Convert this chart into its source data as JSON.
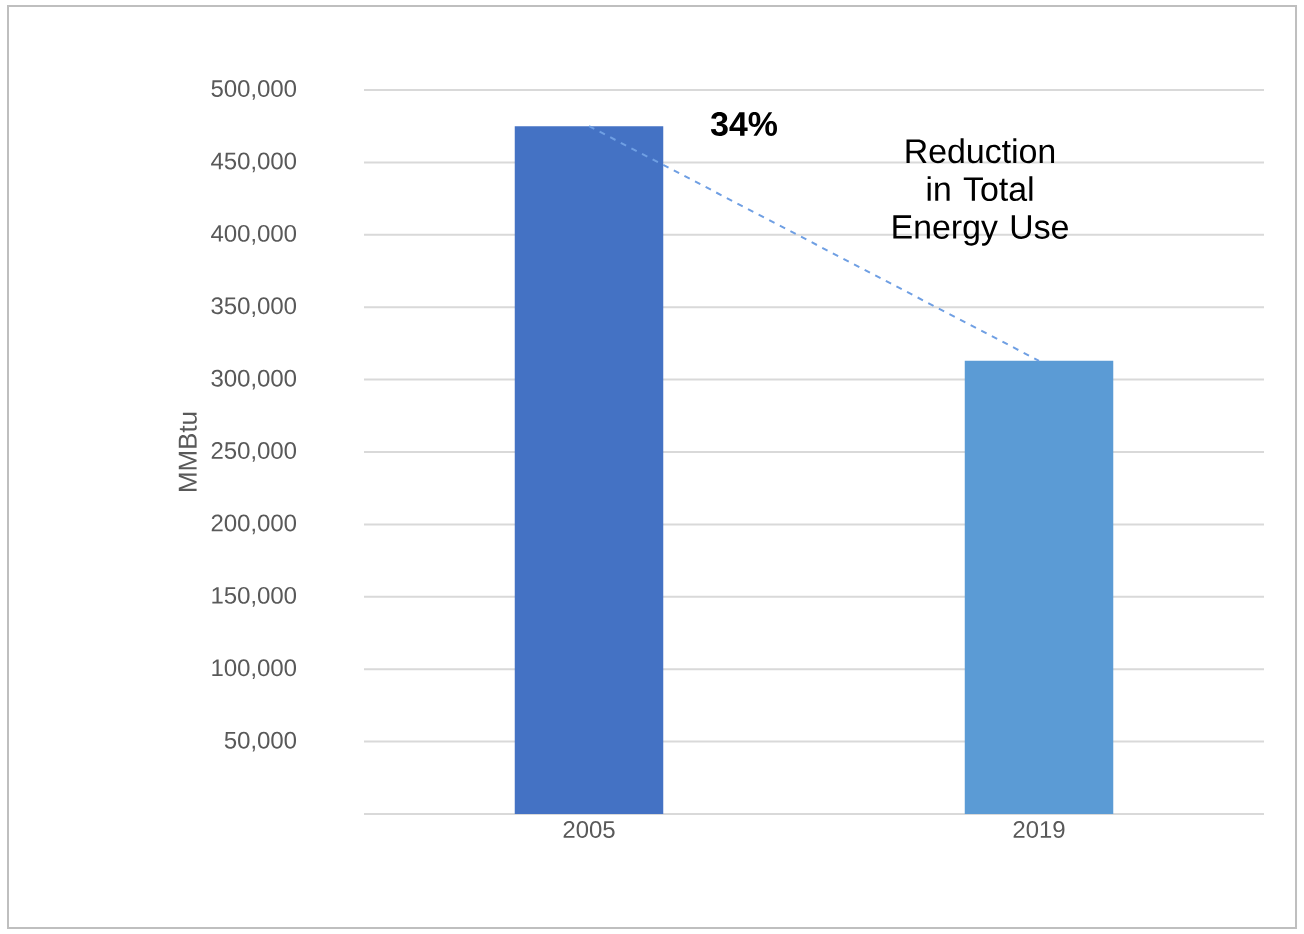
{
  "chart_data": {
    "type": "bar",
    "categories": [
      "2005",
      "2019"
    ],
    "ylabel": "MMBtu",
    "series": [
      {
        "colors": [
          "#4472c4",
          "#5b9bd5"
        ],
        "values": [
          475000,
          313000
        ]
      },
      {
        "type": "line",
        "color": "#6f9fe3",
        "line_style": "dashed",
        "values": [
          475000,
          313000
        ]
      }
    ],
    "ylim": [
      0,
      500000
    ],
    "yticks": [
      {
        "value": 0,
        "label": null
      },
      {
        "value": 50000,
        "label": "50,000"
      },
      {
        "value": 100000,
        "label": "100,000"
      },
      {
        "value": 150000,
        "label": "150,000"
      },
      {
        "value": 200000,
        "label": "200,000"
      },
      {
        "value": 250000,
        "label": "250,000"
      },
      {
        "value": 300000,
        "label": "300,000"
      },
      {
        "value": 350000,
        "label": "350,000"
      },
      {
        "value": 400000,
        "label": "400,000"
      },
      {
        "value": 450000,
        "label": "450,000"
      },
      {
        "value": 500000,
        "label": "500,000"
      }
    ],
    "grid": "y",
    "annotations": [
      "**34%**",
      "Reduction in Total Energy Use"
    ]
  }
}
